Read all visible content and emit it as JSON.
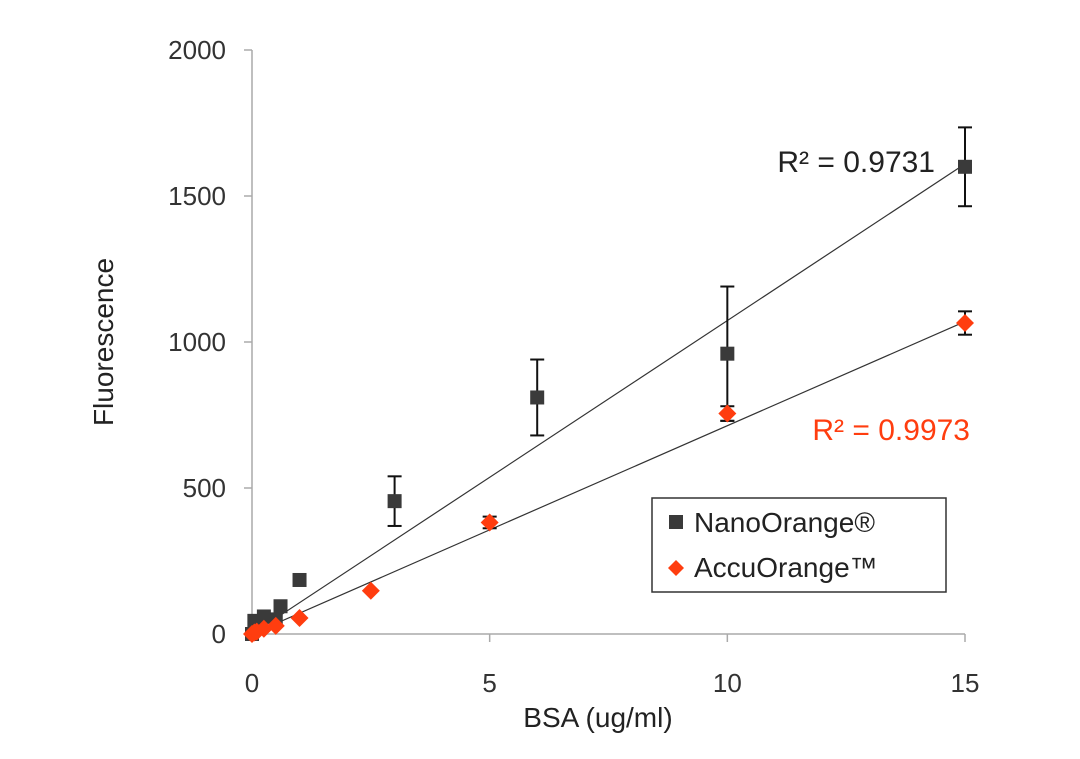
{
  "chart_data": {
    "type": "scatter",
    "title": "",
    "xlabel": "BSA (ug/ml)",
    "ylabel": "Fluorescence",
    "xlim": [
      0,
      15
    ],
    "ylim": [
      0,
      2000
    ],
    "x_ticks": [
      0,
      5,
      10,
      15
    ],
    "x_tick_labels": [
      "0",
      "5",
      "10",
      "15"
    ],
    "y_ticks": [
      0,
      500,
      1000,
      1500,
      2000
    ],
    "y_tick_labels": [
      "0",
      "500",
      "1000",
      "1500",
      "2000"
    ],
    "grid": false,
    "legend_position": "bottom-right",
    "series": [
      {
        "name": "NanoOrange®",
        "color": "#3a3a3a",
        "marker": "square",
        "points": [
          {
            "x": 0,
            "y": 0
          },
          {
            "x": 0.05,
            "y": 45
          },
          {
            "x": 0.1,
            "y": 20
          },
          {
            "x": 0.25,
            "y": 60
          },
          {
            "x": 0.5,
            "y": 50
          },
          {
            "x": 0.6,
            "y": 95
          },
          {
            "x": 1,
            "y": 185
          },
          {
            "x": 3,
            "y": 455,
            "err": 85
          },
          {
            "x": 6,
            "y": 810,
            "err": 130
          },
          {
            "x": 10,
            "y": 960,
            "err": 230
          },
          {
            "x": 15,
            "y": 1600,
            "err": 135
          }
        ],
        "trendline": {
          "x0": 0,
          "y0": 0,
          "x1": 15,
          "y1": 1610
        },
        "r2_label": "R² = 0.9731"
      },
      {
        "name": "AccuOrange™",
        "color": "#ff3d0f",
        "marker": "diamond",
        "points": [
          {
            "x": 0,
            "y": 0
          },
          {
            "x": 0.05,
            "y": 5
          },
          {
            "x": 0.1,
            "y": 8
          },
          {
            "x": 0.25,
            "y": 18
          },
          {
            "x": 0.5,
            "y": 28
          },
          {
            "x": 1,
            "y": 55
          },
          {
            "x": 2.5,
            "y": 148
          },
          {
            "x": 5,
            "y": 382,
            "err": 20
          },
          {
            "x": 10,
            "y": 755,
            "err": 25
          },
          {
            "x": 15,
            "y": 1065,
            "err": 40
          }
        ],
        "trendline": {
          "x0": 0,
          "y0": 0,
          "x1": 15,
          "y1": 1070
        },
        "r2_label": "R² = 0.9973"
      }
    ]
  }
}
